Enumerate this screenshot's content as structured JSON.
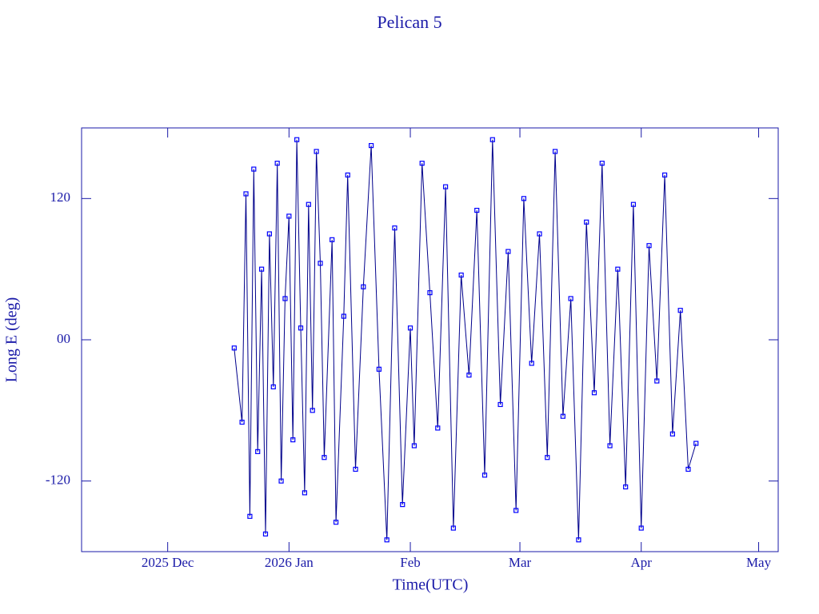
{
  "chart_data": {
    "type": "line",
    "title": "Pelican 5",
    "x_label": "Time(UTC)",
    "y_label": "Long E (deg)",
    "line_color": "#00008b",
    "marker_color": "#0000ff",
    "axis_color": "#1a1aa8",
    "markers": "square",
    "xlim": [
      "2025-11-09",
      "2026-05-06"
    ],
    "xticks": [
      {
        "value": "2025-12-01",
        "label": "2025 Dec"
      },
      {
        "value": "2026-01-01",
        "label": "2026 Jan"
      },
      {
        "value": "2026-02-01",
        "label": "Feb"
      },
      {
        "value": "2026-03-01",
        "label": "Mar"
      },
      {
        "value": "2026-04-01",
        "label": "Apr"
      },
      {
        "value": "2026-05-01",
        "label": "May"
      }
    ],
    "ylim": [
      -180,
      180
    ],
    "yticks": [
      -120,
      {
        "value": 0,
        "label": "00"
      },
      120
    ],
    "x": [
      "2025-12-18",
      "2025-12-20",
      "2025-12-21",
      "2025-12-22",
      "2025-12-23",
      "2025-12-24",
      "2025-12-25",
      "2025-12-26",
      "2025-12-27",
      "2025-12-28",
      "2025-12-29",
      "2025-12-30",
      "2025-12-31",
      "2026-01-01",
      "2026-01-02",
      "2026-01-03",
      "2026-01-04",
      "2026-01-05",
      "2026-01-06",
      "2026-01-07",
      "2026-01-08",
      "2026-01-09",
      "2026-01-10",
      "2026-01-12",
      "2026-01-13",
      "2026-01-15",
      "2026-01-16",
      "2026-01-18",
      "2026-01-20",
      "2026-01-22",
      "2026-01-24",
      "2026-01-26",
      "2026-01-28",
      "2026-01-30",
      "2026-02-01",
      "2026-02-02",
      "2026-02-04",
      "2026-02-06",
      "2026-02-08",
      "2026-02-10",
      "2026-02-12",
      "2026-02-14",
      "2026-02-16",
      "2026-02-18",
      "2026-02-20",
      "2026-02-22",
      "2026-02-24",
      "2026-02-26",
      "2026-02-28",
      "2026-03-02",
      "2026-03-04",
      "2026-03-06",
      "2026-03-08",
      "2026-03-10",
      "2026-03-12",
      "2026-03-14",
      "2026-03-16",
      "2026-03-18",
      "2026-03-20",
      "2026-03-22",
      "2026-03-24",
      "2026-03-26",
      "2026-03-28",
      "2026-03-30",
      "2026-04-01",
      "2026-04-03",
      "2026-04-05",
      "2026-04-07",
      "2026-04-09",
      "2026-04-11",
      "2026-04-13",
      "2026-04-15"
    ],
    "values": [
      -7,
      -70,
      124,
      -150,
      145,
      -95,
      60,
      -165,
      90,
      -40,
      150,
      -120,
      35,
      105,
      -85,
      170,
      10,
      -130,
      115,
      -60,
      160,
      65,
      -100,
      85,
      -155,
      20,
      140,
      -110,
      45,
      165,
      -25,
      -170,
      95,
      -140,
      10,
      -90,
      150,
      40,
      -75,
      130,
      -160,
      55,
      -30,
      110,
      -115,
      170,
      -55,
      75,
      -145,
      120,
      -20,
      90,
      -100,
      160,
      -65,
      35,
      -170,
      100,
      -45,
      150,
      -90,
      60,
      -125,
      115,
      -160,
      80,
      -35,
      140,
      -80,
      25,
      -110,
      -88
    ]
  }
}
